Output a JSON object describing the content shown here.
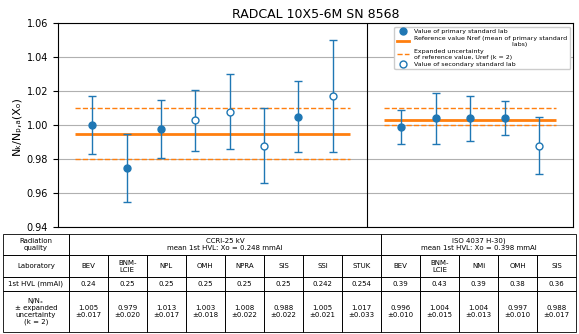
{
  "chart_data": {
    "type": "errorbar",
    "title": "RADCAL 10X5-6M SN 8568",
    "y_label": "Nₖ/Nₚ,ₐ(Xₒ)",
    "ylim": [
      0.94,
      1.06
    ],
    "yticks": [
      0.94,
      0.96,
      0.98,
      {
        "value": 1.0,
        "label": "1.00"
      },
      1.02,
      1.04,
      1.06
    ],
    "grid": true,
    "tick_labels": "y",
    "legend": "upper right",
    "reference_name": "Reference value Nref (mean of primary standard\n                                                 labs)",
    "uncertainty_name": "Expanded uncertainty\nof reference value, Uref (k = 2)",
    "row_labels": [
      "Radiation\nquality",
      "Laboratory",
      "1st HVL (mmAl)",
      "N/Nₓ\n± expanded\nuncertainty\n(k = 2)"
    ],
    "groups": [
      {
        "header": "CCRI-25 kV\nmean 1st HVL: Xo = 0.248 mmAl",
        "categories": [
          "BEV",
          "BNM-\nLCIE",
          "NPL",
          "OMH",
          "NPRA",
          "SIS",
          "SSI",
          "STUK"
        ],
        "reference": 0.995,
        "reference_upper": 1.01,
        "reference_lower": 0.98,
        "series": [
          {
            "name": "Value of primary standard lab",
            "marker": "filled circle",
            "values": [
              1.0,
              0.975,
              0.998,
              null,
              null,
              null,
              1.005,
              null
            ],
            "errors": [
              0.017,
              0.02,
              0.017,
              null,
              null,
              null,
              0.021,
              null
            ]
          },
          {
            "name": "Value of secondary standard lab",
            "marker": "open circle",
            "values": [
              null,
              null,
              null,
              1.003,
              1.008,
              0.988,
              null,
              1.017
            ],
            "errors": [
              null,
              null,
              null,
              0.018,
              0.022,
              0.022,
              null,
              0.033
            ]
          }
        ],
        "hvl": [
          "0.24",
          "0.25",
          "0.25",
          "0.25",
          "0.25",
          "0.25",
          "0.242",
          "0.254"
        ],
        "table_values": [
          "1.005\n±0.017",
          "0.979\n±0.020",
          "1.013\n±0.017",
          "1.003\n±0.018",
          "1.008\n±0.022",
          "0.988\n±0.022",
          "1.005\n±0.021",
          "1.017\n±0.033"
        ]
      },
      {
        "header": "ISO 4037 H-30)\nmean 1st HVL: Xo = 0.398 mmAl",
        "categories": [
          "BEV",
          "BNM-\nLCIE",
          "NMi",
          "OMH",
          "SIS"
        ],
        "reference": 1.003,
        "reference_upper": 1.01,
        "reference_lower": 1.0,
        "series": [
          {
            "name": "Value of primary standard lab",
            "marker": "filled circle",
            "values": [
              0.999,
              1.004,
              1.004,
              1.004,
              null
            ],
            "errors": [
              0.01,
              0.015,
              0.013,
              0.01,
              null
            ]
          },
          {
            "name": "Value of secondary standard lab",
            "marker": "open circle",
            "values": [
              null,
              null,
              null,
              null,
              0.988
            ],
            "errors": [
              null,
              null,
              null,
              null,
              0.017
            ]
          }
        ],
        "hvl": [
          "0.39",
          "0.43",
          "0.39",
          "0.38",
          "0.36"
        ],
        "table_values": [
          "0.996\n±0.010",
          "1.004\n±0.015",
          "1.004\n±0.013",
          "0.997\n±0.010",
          "0.988\n±0.017"
        ]
      }
    ]
  }
}
